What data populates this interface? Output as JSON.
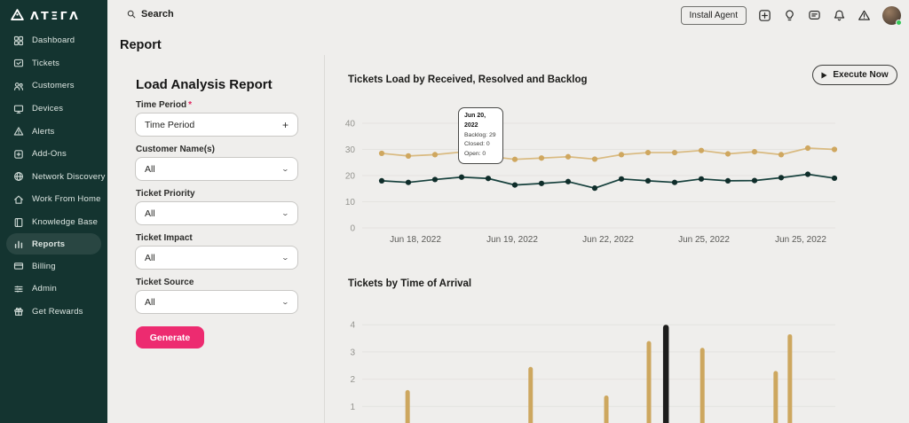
{
  "brand": {
    "name": "ATERA",
    "wordmark_stylized": "ΛTΞΓΛ"
  },
  "sidebar": {
    "items": [
      {
        "label": "Dashboard",
        "icon": "dashboard",
        "active": false
      },
      {
        "label": "Tickets",
        "icon": "tickets",
        "active": false
      },
      {
        "label": "Customers",
        "icon": "customers",
        "active": false
      },
      {
        "label": "Devices",
        "icon": "devices",
        "active": false
      },
      {
        "label": "Alerts",
        "icon": "alerts",
        "active": false
      },
      {
        "label": "Add-Ons",
        "icon": "add-ons",
        "active": false
      },
      {
        "label": "Network Discovery",
        "icon": "network-discovery",
        "active": false
      },
      {
        "label": "Work From Home",
        "icon": "work-from-home",
        "active": false
      },
      {
        "label": "Knowledge Base",
        "icon": "knowledge-base",
        "active": false
      },
      {
        "label": "Reports",
        "icon": "reports",
        "active": true
      },
      {
        "label": "Billing",
        "icon": "billing",
        "active": false
      },
      {
        "label": "Admin",
        "icon": "admin",
        "active": false
      },
      {
        "label": "Get Rewards",
        "icon": "get-rewards",
        "active": false
      }
    ]
  },
  "topbar": {
    "search_label": "Search",
    "install_agent_label": "Install Agent",
    "icons": [
      "add-device",
      "lightbulb",
      "chat",
      "notifications-bell",
      "alerts-warning"
    ],
    "avatar": {
      "status": "online"
    }
  },
  "page": {
    "title": "Report"
  },
  "form": {
    "title": "Load Analysis Report",
    "generate_label": "Generate",
    "fields": [
      {
        "label": "Time Period",
        "required": true,
        "value": "Time Period",
        "suffix": "plus"
      },
      {
        "label": "Customer Name(s)",
        "required": false,
        "value": "All",
        "suffix": "chevron"
      },
      {
        "label": "Ticket Priority",
        "required": false,
        "value": "All",
        "suffix": "chevron"
      },
      {
        "label": "Ticket Impact",
        "required": false,
        "value": "All",
        "suffix": "chevron"
      },
      {
        "label": "Ticket Source",
        "required": false,
        "value": "All",
        "suffix": "chevron"
      }
    ]
  },
  "execute_button": {
    "label": "Execute Now"
  },
  "colors": {
    "sidebar_bg": "#143430",
    "accent_pink": "#ED2B70",
    "line_backlog": "#d9ba80",
    "line_resolved": "#16403c",
    "bar_tan": "#cda75f",
    "bar_highlight": "#1d1d1c",
    "grid": "#e4e3e0"
  },
  "chart_data": [
    {
      "type": "line",
      "title": "Tickets Load by Received, Resolved and Backlog",
      "ylim": [
        0,
        40
      ],
      "yticks": [
        0,
        10,
        20,
        30,
        40
      ],
      "grid": true,
      "legend_position": "none",
      "x_tick_labels": [
        "Jun 18, 2022",
        "Jun 19, 2022",
        "Jun 22, 2022",
        "Jun 25, 2022",
        "Jun 25, 2022"
      ],
      "series": [
        {
          "name": "Backlog",
          "color": "#d9ba80",
          "point_color": "#cfa75f",
          "values": [
            28.5,
            27.5,
            28,
            29,
            27.4,
            26.2,
            26.7,
            27.2,
            26.3,
            28,
            28.8,
            28.8,
            29.6,
            28.3,
            29.1,
            28,
            30.5,
            30
          ]
        },
        {
          "name": "Resolved",
          "color": "#16403c",
          "point_color": "#0f2d2a",
          "values": [
            18,
            17.4,
            18.5,
            19.4,
            18.9,
            16.4,
            17,
            17.7,
            15.2,
            18.7,
            18,
            17.4,
            18.7,
            18,
            18.1,
            19.2,
            20.5,
            19
          ]
        }
      ],
      "tooltip": {
        "title": "Jun 20, 2022",
        "lines": [
          "Backlog: 29",
          "Closed: 0",
          "Open: 0"
        ]
      }
    },
    {
      "type": "bar",
      "title": "Tickets by Time of Arrival",
      "ylim": [
        0,
        4
      ],
      "yticks": [
        1,
        2,
        3,
        4
      ],
      "grid": true,
      "note": "x axis cut off at bottom of viewport",
      "bars": [
        {
          "x_frac": 0.096,
          "value": 1.6,
          "color": "#cda75f"
        },
        {
          "x_frac": 0.356,
          "value": 2.45,
          "color": "#cda75f"
        },
        {
          "x_frac": 0.516,
          "value": 1.4,
          "color": "#cda75f"
        },
        {
          "x_frac": 0.606,
          "value": 3.4,
          "color": "#cda75f"
        },
        {
          "x_frac": 0.642,
          "value": 4.0,
          "color": "#1d1d1c",
          "highlight": true
        },
        {
          "x_frac": 0.719,
          "value": 3.15,
          "color": "#cda75f"
        },
        {
          "x_frac": 0.874,
          "value": 2.3,
          "color": "#cda75f"
        },
        {
          "x_frac": 0.904,
          "value": 3.65,
          "color": "#cda75f"
        }
      ]
    }
  ]
}
